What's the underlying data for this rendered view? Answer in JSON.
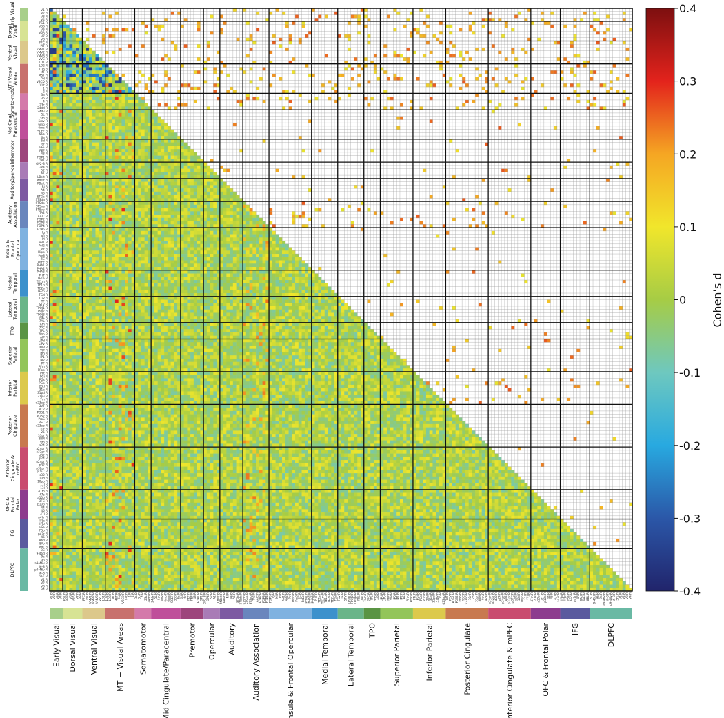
{
  "chart_data": {
    "type": "heatmap",
    "title": "",
    "matrix": "lower-triangle (upper-triangle shows significant cells only)",
    "colorbar": {
      "label": "Cohen's d",
      "vmin": -0.4,
      "vmax": 0.4,
      "ticks": [
        "0.4",
        "0.3",
        "0.2",
        "0.1",
        "0",
        "-0.1",
        "-0.2",
        "-0.3",
        "-0.4"
      ],
      "colors": [
        "#21246b",
        "#2b57a8",
        "#28a9e0",
        "#6ec8bf",
        "#a6cc45",
        "#f1e62b",
        "#f5a623",
        "#e3231c",
        "#7d0f10"
      ]
    },
    "networks": [
      {
        "name": "Early Visual",
        "left_label": "Early Visual",
        "size": 4,
        "color": "#a8cf8a"
      },
      {
        "name": "Dorsal Visual",
        "left_label": "Dorsal Visual",
        "size": 6,
        "color": "#d7e394"
      },
      {
        "name": "Ventral Visual",
        "left_label": "Ventral Visual",
        "size": 7,
        "color": "#dcc88b"
      },
      {
        "name": "MT + Visual Areas",
        "left_label": "MT+Visual Areas",
        "size": 9,
        "color": "#c8716d"
      },
      {
        "name": "Somatomotor",
        "left_label": "Somato-motor",
        "size": 5,
        "color": "#d47aaa"
      },
      {
        "name": "Mid Cingulate/Paracentral",
        "left_label": "Mid Cingl Paracentral",
        "size": 9,
        "color": "#bf4f9a"
      },
      {
        "name": "Premotor",
        "left_label": "Premotor",
        "size": 7,
        "color": "#9d457c"
      },
      {
        "name": "Opercular",
        "left_label": "Oper-cular",
        "size": 5,
        "color": "#a97bb6"
      },
      {
        "name": "Auditory",
        "left_label": "Auditory",
        "size": 7,
        "color": "#7d5aa2"
      },
      {
        "name": "Auditory Association",
        "left_label": "Auditory Association",
        "size": 8,
        "color": "#6a86bd"
      },
      {
        "name": "Insula & Frontal Opercular",
        "left_label": "Insula & Frontal Opercular",
        "size": 13,
        "color": "#7fb2e0"
      },
      {
        "name": "Medial Temporal",
        "left_label": "Medial Temporal",
        "size": 8,
        "color": "#3c91cc"
      },
      {
        "name": "Lateral Temporal",
        "left_label": "Lateral Temporal",
        "size": 8,
        "color": "#6ab589"
      },
      {
        "name": "TPO",
        "left_label": "TPO",
        "size": 5,
        "color": "#5a9444"
      },
      {
        "name": "Superior Parietal",
        "left_label": "Superior Parietal",
        "size": 10,
        "color": "#93c55a"
      },
      {
        "name": "Inferior Parietal",
        "left_label": "Inferior Parietal",
        "size": 10,
        "color": "#dcc94c"
      },
      {
        "name": "Posterior Cingulate",
        "left_label": "Posterior Cingulate",
        "size": 13,
        "color": "#c8794f"
      },
      {
        "name": "Anterior Cingulate & mPFC",
        "left_label": "Anterior Cingulate & mPFC",
        "size": 13,
        "color": "#c94c6f"
      },
      {
        "name": "OFC & Frontal Polar",
        "left_label": "OFC & Frontal Polar",
        "size": 9,
        "color": "#8d3c8e"
      },
      {
        "name": "IFG",
        "left_label": "IFG",
        "size": 9,
        "color": "#5a5a9e"
      },
      {
        "name": "DLPFC",
        "left_label": "DLPFC",
        "size": 13,
        "color": "#6ab9a4"
      }
    ],
    "row_labels_sample": [
      "V1 R",
      "V2 R",
      "V3 R",
      "V4 R",
      "IPS1 R",
      "V3B R",
      "V6 R",
      "V6A R",
      "V7 R",
      "V8 R",
      "FFC R",
      "PIT R",
      "VMV1 R",
      "VMV2 R",
      "VMV3 R",
      "VVC R",
      "LO1 R",
      "LO2 R",
      "LO3 R",
      "MT R",
      "MST R",
      "PH R",
      "V3CD R",
      "V4t R",
      "1 R",
      "2 R",
      "3a R",
      "3b R",
      "4 R",
      "23c R",
      "24dd R",
      "24dv R",
      "5L R",
      "5m R",
      "5mv R",
      "6mp R",
      "6ma R",
      "SCEF R",
      "55b R",
      "6a R",
      "6d R",
      "6r R",
      "FEF R",
      "PEF R",
      "43 R",
      "FOP1 R",
      "OP1 R",
      "OP2-3 R",
      "OP4 R",
      "52 R",
      "A1 R",
      "LBelt R",
      "MBelt R",
      "PBelt R",
      "RI R",
      "A4 R",
      "A5 R",
      "STGa R",
      "STSda R",
      "STSdp R",
      "STSva R",
      "STSvp R",
      "TA2 R",
      "AAIC R",
      "FOP2 R",
      "FOP3 R",
      "FOP4 R",
      "FOP5 R",
      "Ig R",
      "MI R",
      "PI R",
      "PoI1 R",
      "PoI2 R",
      "Pir R",
      "Hipp R",
      "PreS R",
      "EC R",
      "PeEc R",
      "PHA1 R",
      "PHA2 R",
      "PHA3 R",
      "PHT R",
      "TE1a R",
      "TE1m R",
      "TE1p R",
      "TE2a R",
      "TE2p R",
      "TGd R",
      "TGv R",
      "TF R",
      "STV R",
      "TPOJ1 R",
      "TPOJ2 R",
      "TPOJ3 R",
      "PSL R",
      "7AL R",
      "7Am R",
      "7PC R",
      "7PL R",
      "7Pm R",
      "AIP R",
      "LIPd R",
      "LIPv R",
      "MIP R",
      "VIP R",
      "IP0 R",
      "IP1 R",
      "IP2 R",
      "PF R",
      "PFm R",
      "PFop R",
      "PFt R",
      "PGi R",
      "PGs R",
      "PGp R",
      "23d R",
      "31a R",
      "31pd R",
      "31pv R",
      "7m R",
      "d23ab R",
      "DVT R",
      "PCV R",
      "POS1 R",
      "POS2 R",
      "ProS R",
      "RSC R",
      "v23ab R",
      "10r R",
      "25 R",
      "33pr R",
      "8BM R",
      "9m R",
      "a24 R",
      "a24pr R",
      "a32pr R",
      "d32 R",
      "p24 R",
      "p24pr R",
      "p32 R",
      "p32pr R",
      "pOFC R",
      "s32 R",
      "10d R",
      "10pp R",
      "11l R",
      "13l R",
      "47m R",
      "47s R",
      "a10p R",
      "OFC R",
      "p10p R",
      "44 R",
      "45 R",
      "47l R",
      "a47r R",
      "IFJa R",
      "IFJp R",
      "IFSa R",
      "IFSp R",
      "p47r R",
      "46 R",
      "8Ad R",
      "8Av R",
      "8BL R",
      "8C R",
      "9-46d R",
      "9a R",
      "9p R",
      "a9-46v R",
      "i6-8 R",
      "p9-46v R",
      "s6-8 R",
      "SFL R"
    ],
    "notes": "Network-by-network ordering of cortical parcels; cells colored by Cohen's d effect size."
  }
}
